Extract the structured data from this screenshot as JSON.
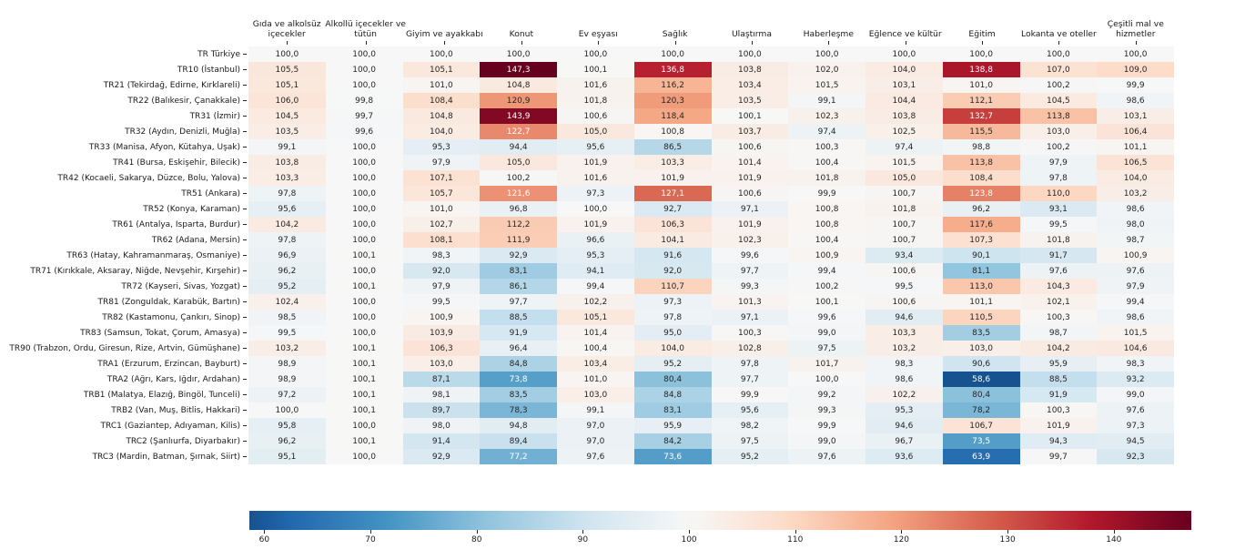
{
  "chart_data": {
    "type": "heatmap",
    "title": "",
    "value_format": "decimal-comma-1",
    "columns": [
      "Gıda ve alkolsüz\niçecekler",
      "Alkollü içecekler ve\ntütün",
      "Giyim ve ayakkabı",
      "Konut",
      "Ev eşyası",
      "Sağlık",
      "Ulaştırma",
      "Haberleşme",
      "Eğlence ve kültür",
      "Eğitim",
      "Lokanta ve oteller",
      "Çeşitli mal ve\nhizmetler"
    ],
    "rows": [
      {
        "label": "TR Türkiye",
        "values": [
          100.0,
          100.0,
          100.0,
          100.0,
          100.0,
          100.0,
          100.0,
          100.0,
          100.0,
          100.0,
          100.0,
          100.0
        ]
      },
      {
        "label": "TR10 (İstanbul)",
        "values": [
          105.5,
          100.0,
          105.1,
          147.3,
          100.1,
          136.8,
          103.8,
          102.0,
          104.0,
          138.8,
          107.0,
          109.0
        ]
      },
      {
        "label": "TR21 (Tekirdağ, Edirne, Kırklareli)",
        "values": [
          105.1,
          100.0,
          101.0,
          104.8,
          101.6,
          116.2,
          103.4,
          101.5,
          103.1,
          101.0,
          100.2,
          99.9
        ]
      },
      {
        "label": "TR22 (Balıkesir, Çanakkale)",
        "values": [
          106.0,
          99.8,
          108.4,
          120.9,
          101.8,
          120.3,
          103.5,
          99.1,
          104.4,
          112.1,
          104.5,
          98.6
        ]
      },
      {
        "label": "TR31 (İzmir)",
        "values": [
          104.5,
          99.7,
          104.8,
          143.9,
          100.6,
          118.4,
          100.1,
          102.3,
          103.8,
          132.7,
          113.8,
          103.1
        ]
      },
      {
        "label": "TR32 (Aydın, Denizli, Muğla)",
        "values": [
          103.5,
          99.6,
          104.0,
          122.7,
          105.0,
          100.8,
          103.7,
          97.4,
          102.5,
          115.5,
          103.0,
          106.4
        ]
      },
      {
        "label": "TR33 (Manisa, Afyon, Kütahya, Uşak)",
        "values": [
          99.1,
          100.0,
          95.3,
          94.4,
          95.6,
          86.5,
          100.6,
          100.3,
          97.4,
          98.8,
          100.2,
          101.1
        ]
      },
      {
        "label": "TR41 (Bursa, Eskişehir, Bilecik)",
        "values": [
          103.8,
          100.0,
          97.9,
          105.0,
          101.9,
          103.3,
          101.4,
          100.4,
          101.5,
          113.8,
          97.9,
          106.5
        ]
      },
      {
        "label": "TR42 (Kocaeli, Sakarya, Düzce, Bolu, Yalova)",
        "values": [
          103.3,
          100.0,
          107.1,
          100.2,
          101.6,
          101.9,
          101.9,
          101.8,
          105.0,
          108.4,
          97.8,
          104.0
        ]
      },
      {
        "label": "TR51 (Ankara)",
        "values": [
          97.8,
          100.0,
          105.7,
          121.6,
          97.3,
          127.1,
          100.6,
          99.9,
          100.7,
          123.8,
          110.0,
          103.2
        ]
      },
      {
        "label": "TR52 (Konya, Karaman)",
        "values": [
          95.6,
          100.0,
          101.0,
          96.8,
          100.0,
          92.7,
          97.1,
          100.8,
          101.8,
          96.2,
          93.1,
          98.6
        ]
      },
      {
        "label": "TR61 (Antalya, Isparta, Burdur)",
        "values": [
          104.2,
          100.0,
          102.7,
          112.2,
          101.9,
          106.3,
          101.9,
          100.8,
          100.7,
          117.6,
          99.5,
          98.0
        ]
      },
      {
        "label": "TR62 (Adana, Mersin)",
        "values": [
          97.8,
          100.0,
          108.1,
          111.9,
          96.6,
          104.1,
          102.3,
          100.4,
          100.7,
          107.3,
          101.8,
          98.7
        ]
      },
      {
        "label": "TR63 (Hatay, Kahramanmaraş, Osmaniye)",
        "values": [
          96.9,
          100.1,
          98.3,
          92.9,
          95.3,
          91.6,
          99.6,
          100.9,
          93.4,
          90.1,
          91.7,
          100.9
        ]
      },
      {
        "label": "TR71 (Kırıkkale, Aksaray, Niğde, Nevşehir, Kırşehir)",
        "values": [
          96.2,
          100.0,
          92.0,
          83.1,
          94.1,
          92.0,
          97.7,
          99.4,
          100.6,
          81.1,
          97.6,
          97.6
        ]
      },
      {
        "label": "TR72 (Kayseri, Sivas, Yozgat)",
        "values": [
          95.2,
          100.1,
          97.9,
          86.1,
          99.4,
          110.7,
          99.3,
          100.2,
          99.5,
          113.0,
          104.3,
          97.9
        ]
      },
      {
        "label": "TR81 (Zonguldak, Karabük, Bartın)",
        "values": [
          102.4,
          100.0,
          99.5,
          97.7,
          102.2,
          97.3,
          101.3,
          100.1,
          100.6,
          101.1,
          102.1,
          99.4
        ]
      },
      {
        "label": "TR82 (Kastamonu, Çankırı, Sinop)",
        "values": [
          98.5,
          100.0,
          100.9,
          88.5,
          105.1,
          97.8,
          97.1,
          99.6,
          94.6,
          110.5,
          100.3,
          98.6
        ]
      },
      {
        "label": "TR83 (Samsun, Tokat, Çorum, Amasya)",
        "values": [
          99.5,
          100.0,
          103.9,
          91.9,
          101.4,
          95.0,
          100.3,
          99.0,
          103.3,
          83.5,
          98.7,
          101.5
        ]
      },
      {
        "label": "TR90 (Trabzon, Ordu, Giresun, Rize, Artvin, Gümüşhane)",
        "values": [
          103.2,
          100.1,
          106.3,
          96.4,
          100.4,
          104.0,
          102.8,
          97.5,
          103.2,
          103.0,
          104.2,
          104.6
        ]
      },
      {
        "label": "TRA1 (Erzurum, Erzincan, Bayburt)",
        "values": [
          98.9,
          100.1,
          103.0,
          84.8,
          103.4,
          95.2,
          97.8,
          101.7,
          98.3,
          90.6,
          95.9,
          98.3
        ]
      },
      {
        "label": "TRA2 (Ağrı, Kars, Iğdır, Ardahan)",
        "values": [
          98.9,
          100.1,
          87.1,
          73.8,
          101.0,
          80.4,
          97.7,
          100.0,
          98.6,
          58.6,
          88.5,
          93.2
        ]
      },
      {
        "label": "TRB1 (Malatya, Elazığ, Bingöl, Tunceli)",
        "values": [
          97.2,
          100.1,
          98.1,
          83.5,
          103.0,
          84.8,
          99.9,
          99.2,
          102.2,
          80.4,
          91.9,
          99.0
        ]
      },
      {
        "label": "TRB2 (Van, Muş, Bitlis, Hakkari)",
        "values": [
          100.0,
          100.1,
          89.7,
          78.3,
          99.1,
          83.1,
          95.6,
          99.3,
          95.3,
          78.2,
          100.3,
          97.6
        ]
      },
      {
        "label": "TRC1 (Gaziantep, Adıyaman, Kilis)",
        "values": [
          95.8,
          100.0,
          98.0,
          94.8,
          97.0,
          95.9,
          98.2,
          99.9,
          94.6,
          106.7,
          101.9,
          97.3
        ]
      },
      {
        "label": "TRC2 (Şanlıurfa, Diyarbakır)",
        "values": [
          96.2,
          100.1,
          91.4,
          89.4,
          97.0,
          84.2,
          97.5,
          99.0,
          96.7,
          73.5,
          94.3,
          94.5
        ]
      },
      {
        "label": "TRC3 (Mardin, Batman, Şırnak, Siirt)",
        "values": [
          95.1,
          100.0,
          92.9,
          77.2,
          97.6,
          73.6,
          95.2,
          97.6,
          93.6,
          63.9,
          99.7,
          92.3
        ]
      }
    ],
    "colormap": {
      "name": "RdBu_r",
      "anchors": [
        "#053061",
        "#2166ac",
        "#4393c3",
        "#92c5de",
        "#d1e5f0",
        "#f7f7f7",
        "#fddbc7",
        "#f4a582",
        "#d6604d",
        "#b2182b",
        "#67001f"
      ]
    },
    "normalization": {
      "center": 100
    },
    "colorbar": {
      "ticks": [
        60,
        70,
        80,
        90,
        100,
        110,
        120,
        130,
        140
      ]
    },
    "text_colors": {
      "dark": "#262626",
      "light": "#ffffff"
    },
    "layout": {
      "grid": false,
      "legend_position": "bottom-colorbar"
    }
  }
}
